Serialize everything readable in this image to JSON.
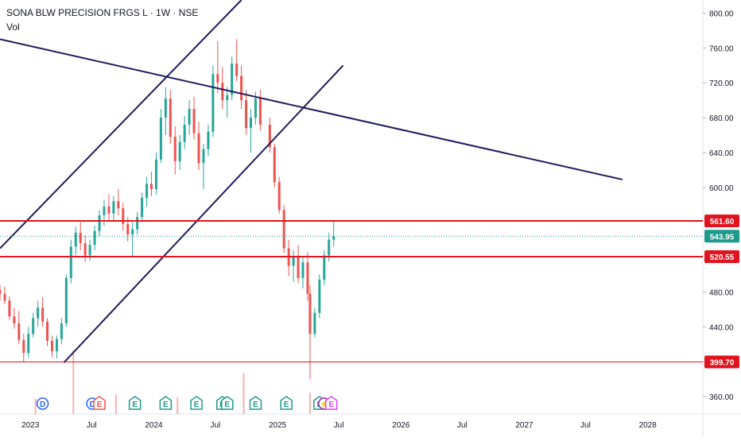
{
  "header": {
    "symbol_line": "SONA BLW PRECISION FRGS L · 1W · NSE",
    "indicator": "Vol"
  },
  "colors": {
    "up": "#26a69a",
    "down": "#ef5350",
    "trendline": "#1f1b5c",
    "level": "#e0141e",
    "current_price": "#1e9a8c",
    "event_e": "#1e9a8c",
    "event_d": "#2962ff",
    "event_de": "#ef5350",
    "event_split": "#9c27b0",
    "event_last_e": "#e040fb"
  },
  "chart_data": {
    "type": "candlestick",
    "y_axis_ticks": [
      "800.00",
      "760.00",
      "720.00",
      "680.00",
      "640.00",
      "600.00",
      "480.00",
      "440.00",
      "400.00",
      "360.00"
    ],
    "y_axis_tick_values": [
      800,
      760,
      720,
      680,
      640,
      600,
      480,
      440,
      400,
      360
    ],
    "ylim": [
      340,
      815
    ],
    "x_axis_ticks": [
      "2023",
      "Jul",
      "2024",
      "Jul",
      "2025",
      "Jul",
      "2026",
      "Jul",
      "2027",
      "Jul",
      "2028"
    ],
    "x_axis_tick_dates": [
      "2023-01-01",
      "2023-07-01",
      "2024-01-01",
      "2024-07-01",
      "2025-01-01",
      "2025-07-01",
      "2026-01-01",
      "2026-07-01",
      "2027-01-01",
      "2027-07-01",
      "2028-01-01"
    ],
    "xlim": [
      "2022-10-03",
      "2028-06-12"
    ],
    "horizontal_levels": [
      {
        "label": "561.60",
        "value": 561.6,
        "style": "thick"
      },
      {
        "label": "520.55",
        "value": 520.55,
        "style": "thick"
      },
      {
        "label": "399.70",
        "value": 399.7,
        "style": "thin"
      }
    ],
    "current_price": {
      "label": "543.95",
      "value": 543.95
    },
    "trendlines": [
      {
        "from": {
          "date": "2022-10-03",
          "value": 770
        },
        "to": {
          "date": "2027-10-18",
          "value": 609
        }
      },
      {
        "from": {
          "date": "2022-10-03",
          "value": 530
        },
        "to": {
          "date": "2024-09-16",
          "value": 815
        }
      },
      {
        "from": {
          "date": "2023-04-10",
          "value": 399
        },
        "to": {
          "date": "2025-07-14",
          "value": 740
        }
      }
    ],
    "candles": [
      [
        "2022-10-03",
        482,
        488,
        470,
        478
      ],
      [
        "2022-10-17",
        478,
        486,
        466,
        470
      ],
      [
        "2022-10-31",
        470,
        475,
        448,
        452
      ],
      [
        "2022-11-14",
        452,
        462,
        438,
        444
      ],
      [
        "2022-11-28",
        444,
        458,
        420,
        425
      ],
      [
        "2022-12-12",
        425,
        432,
        400,
        410
      ],
      [
        "2022-12-26",
        410,
        440,
        405,
        432
      ],
      [
        "2023-01-09",
        432,
        456,
        428,
        450
      ],
      [
        "2023-01-23",
        450,
        470,
        440,
        462
      ],
      [
        "2023-02-06",
        462,
        474,
        440,
        446
      ],
      [
        "2023-02-20",
        446,
        450,
        418,
        424
      ],
      [
        "2023-03-06",
        424,
        430,
        405,
        412
      ],
      [
        "2023-03-20",
        412,
        430,
        404,
        426
      ],
      [
        "2023-04-03",
        426,
        450,
        420,
        444
      ],
      [
        "2023-04-17",
        444,
        500,
        440,
        496
      ],
      [
        "2023-05-01",
        496,
        540,
        490,
        532
      ],
      [
        "2023-05-15",
        532,
        555,
        522,
        548
      ],
      [
        "2023-05-29",
        548,
        560,
        528,
        536
      ],
      [
        "2023-06-12",
        536,
        545,
        515,
        522
      ],
      [
        "2023-06-26",
        522,
        540,
        516,
        534
      ],
      [
        "2023-07-10",
        534,
        556,
        528,
        550
      ],
      [
        "2023-07-24",
        550,
        574,
        544,
        568
      ],
      [
        "2023-08-07",
        568,
        586,
        556,
        578
      ],
      [
        "2023-08-21",
        578,
        592,
        562,
        570
      ],
      [
        "2023-09-04",
        570,
        590,
        562,
        584
      ],
      [
        "2023-09-18",
        584,
        598,
        568,
        576
      ],
      [
        "2023-10-02",
        576,
        582,
        550,
        558
      ],
      [
        "2023-10-16",
        558,
        566,
        538,
        546
      ],
      [
        "2023-10-30",
        546,
        560,
        520,
        552
      ],
      [
        "2023-11-13",
        552,
        572,
        546,
        566
      ],
      [
        "2023-11-27",
        566,
        594,
        560,
        588
      ],
      [
        "2023-12-11",
        588,
        612,
        578,
        604
      ],
      [
        "2023-12-25",
        604,
        618,
        590,
        598
      ],
      [
        "2024-01-08",
        598,
        640,
        592,
        632
      ],
      [
        "2024-01-22",
        632,
        690,
        628,
        680
      ],
      [
        "2024-02-05",
        680,
        715,
        660,
        702
      ],
      [
        "2024-02-19",
        702,
        712,
        650,
        658
      ],
      [
        "2024-03-04",
        658,
        670,
        615,
        630
      ],
      [
        "2024-03-18",
        630,
        660,
        620,
        652
      ],
      [
        "2024-04-01",
        652,
        682,
        644,
        672
      ],
      [
        "2024-04-15",
        672,
        700,
        660,
        690
      ],
      [
        "2024-04-29",
        690,
        704,
        655,
        662
      ],
      [
        "2024-05-13",
        662,
        675,
        620,
        628
      ],
      [
        "2024-05-27",
        628,
        650,
        598,
        644
      ],
      [
        "2024-06-10",
        644,
        672,
        636,
        664
      ],
      [
        "2024-06-24",
        664,
        740,
        658,
        730
      ],
      [
        "2024-07-08",
        730,
        768,
        708,
        720
      ],
      [
        "2024-07-22",
        720,
        738,
        690,
        700
      ],
      [
        "2024-08-05",
        700,
        715,
        680,
        706
      ],
      [
        "2024-08-19",
        706,
        750,
        700,
        742
      ],
      [
        "2024-09-02",
        742,
        770,
        722,
        728
      ],
      [
        "2024-09-16",
        728,
        740,
        690,
        700
      ],
      [
        "2024-09-30",
        700,
        712,
        660,
        668
      ],
      [
        "2024-10-14",
        668,
        690,
        640,
        680
      ],
      [
        "2024-10-28",
        680,
        710,
        672,
        702
      ],
      [
        "2024-11-11",
        702,
        712,
        665,
        672
      ],
      [
        "2024-12-09",
        672,
        680,
        640,
        646
      ],
      [
        "2024-12-23",
        646,
        650,
        600,
        606
      ],
      [
        "2025-01-06",
        606,
        612,
        570,
        574
      ],
      [
        "2025-01-20",
        574,
        580,
        525,
        530
      ],
      [
        "2025-02-03",
        530,
        540,
        498,
        510
      ],
      [
        "2025-02-17",
        510,
        528,
        492,
        520
      ],
      [
        "2025-03-03",
        520,
        534,
        490,
        496
      ],
      [
        "2025-03-17",
        496,
        520,
        484,
        514
      ],
      [
        "2025-03-31",
        514,
        526,
        470,
        478
      ],
      [
        "2025-04-07",
        478,
        488,
        380,
        432
      ],
      [
        "2025-04-21",
        432,
        462,
        428,
        456
      ],
      [
        "2025-05-05",
        456,
        500,
        450,
        494
      ],
      [
        "2025-05-19",
        494,
        528,
        488,
        522
      ],
      [
        "2025-06-02",
        522,
        548,
        515,
        540
      ],
      [
        "2025-06-16",
        540,
        562,
        532,
        544
      ]
    ],
    "volume_bars": [
      {
        "date": "2023-05-08",
        "value": 4.2
      },
      {
        "date": "2024-09-23",
        "value": 2.7
      },
      {
        "date": "2023-01-16",
        "value": 1.0
      },
      {
        "date": "2023-09-11",
        "value": 1.3
      },
      {
        "date": "2024-03-11",
        "value": 1.1
      },
      {
        "date": "2025-04-07",
        "value": 1.4
      }
    ],
    "event_markers": [
      {
        "date": "2023-02-06",
        "label": "D",
        "kind": "d"
      },
      {
        "date": "2023-07-03",
        "label": "D",
        "kind": "d"
      },
      {
        "date": "2023-07-24",
        "label": "E",
        "kind": "de"
      },
      {
        "date": "2023-11-06",
        "label": "E",
        "kind": "e"
      },
      {
        "date": "2024-02-05",
        "label": "E",
        "kind": "e"
      },
      {
        "date": "2024-05-06",
        "label": "E",
        "kind": "e"
      },
      {
        "date": "2024-07-22",
        "label": "D",
        "kind": "e"
      },
      {
        "date": "2024-08-05",
        "label": "E",
        "kind": "e"
      },
      {
        "date": "2024-10-28",
        "label": "E",
        "kind": "e"
      },
      {
        "date": "2025-01-27",
        "label": "E",
        "kind": "e"
      },
      {
        "date": "2025-05-05",
        "label": "E",
        "kind": "e"
      },
      {
        "date": "2025-05-19",
        "label": "⚡",
        "kind": "split"
      },
      {
        "date": "2025-06-09",
        "label": "E",
        "kind": "last_e"
      }
    ]
  }
}
